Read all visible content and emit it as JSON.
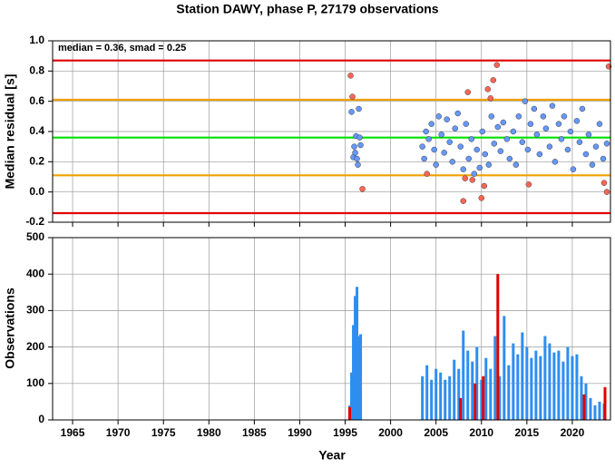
{
  "chart_data": [
    {
      "type": "scatter",
      "title": "Station DAWY, phase P, 27179 observations",
      "ylabel": "Median residual [s]",
      "annotation": "median = 0.36, smad = 0.25",
      "xlim": [
        1962.8,
        2024.2
      ],
      "xticks": [
        1965,
        1970,
        1975,
        1980,
        1985,
        1990,
        1995,
        2000,
        2005,
        2010,
        2015,
        2020
      ],
      "ylim": [
        -0.2,
        1.0
      ],
      "yticks": [
        -0.2,
        {
          "value": 0,
          "label": "0.0"
        },
        0.2,
        0.4,
        0.6,
        0.8,
        {
          "value": 1,
          "label": "1.0"
        }
      ],
      "grid": true,
      "hlines": [
        {
          "value": 0.87,
          "color": "#e00000"
        },
        {
          "value": 0.61,
          "color": "#f0a000"
        },
        {
          "value": 0.36,
          "color": "#00e000"
        },
        {
          "value": 0.11,
          "color": "#f0a000"
        },
        {
          "value": -0.14,
          "color": "#e00000"
        }
      ],
      "series": [
        {
          "color": "#6699ff",
          "x": [
            1995.7,
            1995.9,
            1996.0,
            1996.1,
            1996.2,
            1996.3,
            1996.5,
            1996.6,
            1996.4,
            1996.7,
            2003.5,
            2003.7,
            2003.9,
            2004.2,
            2004.5,
            2004.8,
            2005.0,
            2005.3,
            2005.6,
            2005.9,
            2006.2,
            2006.5,
            2006.8,
            2007.1,
            2007.4,
            2007.7,
            2008.0,
            2008.3,
            2008.6,
            2008.9,
            2009.2,
            2009.5,
            2009.8,
            2010.1,
            2010.4,
            2010.8,
            2011.1,
            2011.4,
            2011.8,
            2012.1,
            2012.4,
            2012.8,
            2013.1,
            2013.5,
            2013.8,
            2014.1,
            2014.5,
            2014.8,
            2015.1,
            2015.4,
            2015.8,
            2016.1,
            2016.4,
            2016.8,
            2017.1,
            2017.5,
            2017.8,
            2018.1,
            2018.5,
            2018.8,
            2019.1,
            2019.5,
            2019.8,
            2020.1,
            2020.5,
            2020.8,
            2021.1,
            2021.5,
            2021.8,
            2022.2,
            2022.6,
            2023.0,
            2023.4,
            2023.8
          ],
          "values": [
            0.53,
            0.23,
            0.3,
            0.26,
            0.37,
            0.22,
            0.55,
            0.36,
            0.18,
            0.31,
            0.3,
            0.22,
            0.4,
            0.35,
            0.45,
            0.28,
            0.18,
            0.5,
            0.38,
            0.26,
            0.48,
            0.33,
            0.2,
            0.42,
            0.52,
            0.3,
            0.15,
            0.45,
            0.22,
            0.35,
            0.12,
            0.28,
            0.16,
            0.4,
            0.25,
            0.18,
            0.5,
            0.32,
            0.43,
            0.27,
            0.46,
            0.35,
            0.22,
            0.4,
            0.18,
            0.5,
            0.33,
            0.6,
            0.28,
            0.45,
            0.55,
            0.38,
            0.25,
            0.5,
            0.42,
            0.3,
            0.57,
            0.2,
            0.45,
            0.35,
            0.5,
            0.28,
            0.4,
            0.15,
            0.47,
            0.33,
            0.55,
            0.25,
            0.38,
            0.18,
            0.3,
            0.45,
            0.22,
            0.32
          ]
        },
        {
          "color": "#ff6655",
          "x": [
            1995.6,
            1995.8,
            1996.9,
            2004.0,
            2008.0,
            2008.5,
            2009.0,
            2008.2,
            2010.0,
            2010.3,
            2010.7,
            2011.0,
            2011.3,
            2011.7,
            2015.2,
            2023.5,
            2023.8,
            2024.0
          ],
          "values": [
            0.77,
            0.63,
            0.02,
            0.12,
            -0.06,
            0.66,
            0.08,
            0.09,
            -0.04,
            0.04,
            0.68,
            0.62,
            0.74,
            0.84,
            0.05,
            0.06,
            0.0,
            0.83
          ]
        }
      ]
    },
    {
      "type": "bar",
      "ylabel": "Observations",
      "xlabel": "Year",
      "xlim": [
        1962.8,
        2024.2
      ],
      "xticks": [
        1965,
        1970,
        1975,
        1980,
        1985,
        1990,
        1995,
        2000,
        2005,
        2010,
        2015,
        2020
      ],
      "ylim": [
        0,
        500
      ],
      "yticks": [
        0,
        100,
        200,
        300,
        400,
        500
      ],
      "grid": true,
      "series": [
        {
          "color": "#2e8ef0",
          "x": [
            1995.5,
            1995.7,
            1995.9,
            1996.1,
            1996.3,
            1996.5,
            1996.7,
            2003.5,
            2004,
            2004.5,
            2005,
            2005.5,
            2006,
            2006.5,
            2007,
            2007.5,
            2008,
            2008.5,
            2009,
            2009.5,
            2010,
            2010.5,
            2011,
            2011.5,
            2012,
            2012.5,
            2013,
            2013.5,
            2014,
            2014.5,
            2015,
            2015.5,
            2016,
            2016.5,
            2017,
            2017.5,
            2018,
            2018.5,
            2019,
            2019.5,
            2020,
            2020.5,
            2021,
            2021.5,
            2022,
            2022.5,
            2023,
            2023.5
          ],
          "values": [
            40,
            130,
            260,
            340,
            365,
            230,
            235,
            120,
            150,
            110,
            140,
            130,
            110,
            120,
            165,
            140,
            245,
            190,
            160,
            200,
            110,
            170,
            140,
            230,
            120,
            285,
            150,
            210,
            180,
            240,
            200,
            170,
            190,
            175,
            230,
            210,
            185,
            190,
            160,
            200,
            175,
            180,
            120,
            100,
            60,
            40,
            50,
            45
          ]
        },
        {
          "color": "#e00000",
          "x": [
            1995.5,
            2007.7,
            2009.3,
            2010.2,
            2011.8,
            2021.3,
            2023.6
          ],
          "values": [
            35,
            60,
            100,
            120,
            400,
            70,
            90
          ]
        }
      ]
    }
  ]
}
